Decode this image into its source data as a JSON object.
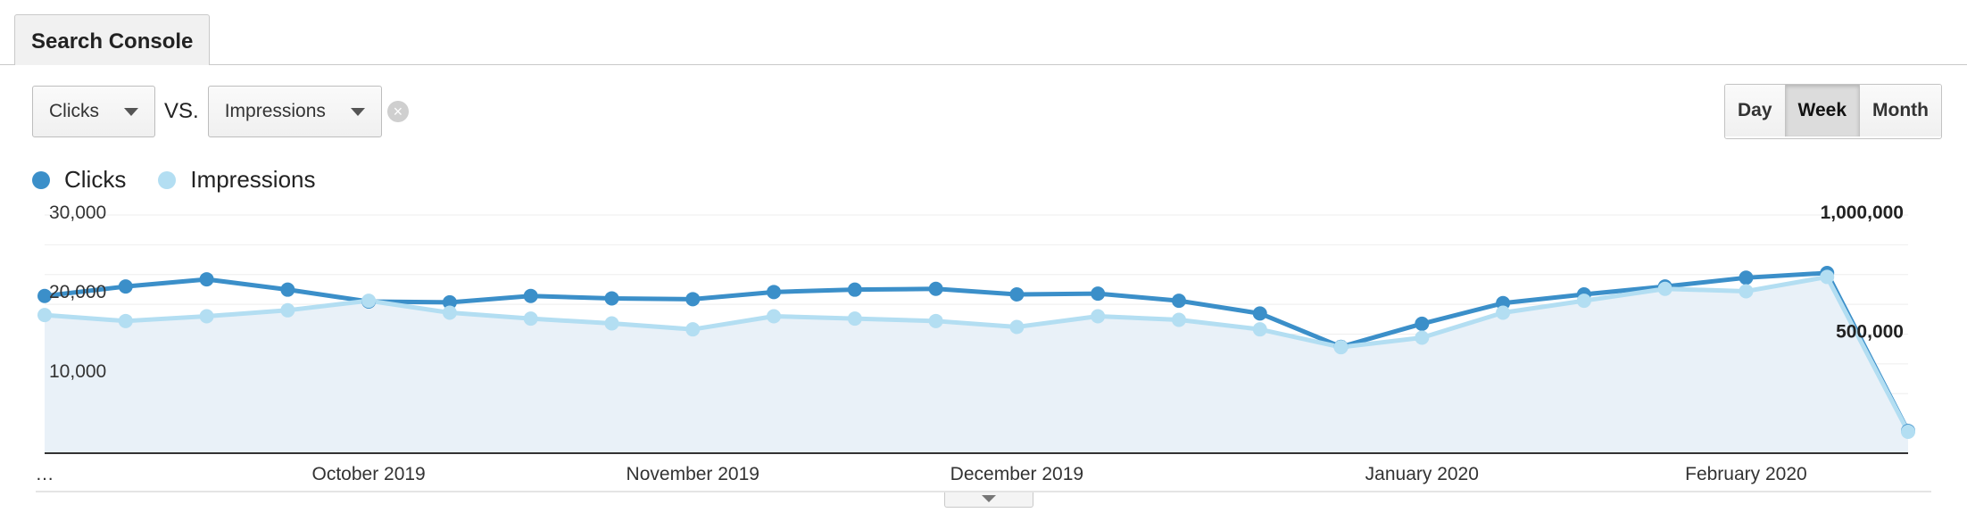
{
  "tab": {
    "label": "Search Console"
  },
  "controls": {
    "metric1": "Clicks",
    "vs_label": "VS.",
    "metric2": "Impressions",
    "clear_icon": "×"
  },
  "granularity": {
    "options": [
      "Day",
      "Week",
      "Month"
    ],
    "selected": "Week"
  },
  "legend": [
    {
      "name": "Clicks",
      "color": "#3b8fc9"
    },
    {
      "name": "Impressions",
      "color": "#b3def2"
    }
  ],
  "chart_data": {
    "type": "line",
    "categories": [
      "…",
      "",
      "",
      "",
      "October 2019",
      "",
      "",
      "",
      "November 2019",
      "",
      "",
      "",
      "December 2019",
      "",
      "",
      "",
      "",
      "January 2020",
      "",
      "",
      "",
      "February 2020",
      "",
      ""
    ],
    "x_tick_labels": [
      "…",
      "October 2019",
      "November 2019",
      "December 2019",
      "January 2020",
      "February 2020"
    ],
    "series": [
      {
        "name": "Clicks",
        "axis": "left",
        "color": "#3b8fc9",
        "values": [
          19800,
          21000,
          21900,
          20600,
          19100,
          19000,
          19800,
          19500,
          19400,
          20300,
          20600,
          20700,
          20000,
          20100,
          19200,
          17600,
          13400,
          16300,
          18900,
          20000,
          21000,
          22100,
          22700,
          2800
        ]
      },
      {
        "name": "Impressions",
        "axis": "right",
        "color": "#b3def2",
        "values": [
          580000,
          555000,
          575000,
          600000,
          640000,
          590000,
          565000,
          545000,
          520000,
          575000,
          565000,
          555000,
          530000,
          575000,
          560000,
          520000,
          445000,
          485000,
          590000,
          640000,
          690000,
          680000,
          740000,
          90000
        ]
      }
    ],
    "y_left": {
      "range": [
        0,
        30000
      ],
      "ticks": [
        10000,
        20000,
        30000
      ],
      "tick_labels": [
        "10,000",
        "20,000",
        "30,000"
      ]
    },
    "y_right": {
      "range": [
        0,
        1000000
      ],
      "ticks": [
        500000,
        1000000
      ],
      "tick_labels": [
        "500,000",
        "1,000,000"
      ]
    },
    "title": "",
    "xlabel": "",
    "ylabel": ""
  }
}
